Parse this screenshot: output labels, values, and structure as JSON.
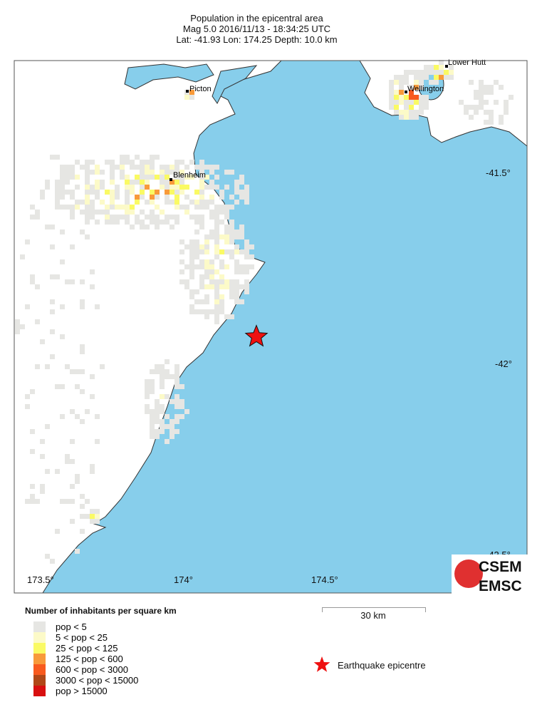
{
  "title": {
    "line1": "Population in the epicentral area",
    "line2": "Mag 5.0  2016/11/13 - 18:34:25 UTC",
    "line3": "Lat: -41.93    Lon: 174.25     Depth:  10.0 km"
  },
  "map": {
    "sea_color": "#87CEEB",
    "land_color": "#ffffff",
    "lon_ticks": [
      "173.5°",
      "174°",
      "174.5°"
    ],
    "lat_ticks": [
      "-41.5°",
      "-42°",
      "-42.5°"
    ],
    "cities": [
      {
        "name": "Picton"
      },
      {
        "name": "Blenheim"
      },
      {
        "name": "Wellington"
      },
      {
        "name": "Lower Hutt"
      }
    ],
    "epicentre": {
      "lat": -41.93,
      "lon": 174.25,
      "color": "#ee1111"
    }
  },
  "logo": {
    "text1": "CSEM",
    "text2": "EMSC"
  },
  "legend": {
    "title": "Number of inhabitants per square km",
    "items": [
      {
        "label": "pop < 5",
        "color": "#e6e6e3"
      },
      {
        "label": "5 < pop < 25",
        "color": "#fcfac8"
      },
      {
        "label": "25 < pop < 125",
        "color": "#fafa64"
      },
      {
        "label": "125 < pop < 600",
        "color": "#f89a3a"
      },
      {
        "label": "600 < pop < 3000",
        "color": "#f85a1e"
      },
      {
        "label": "3000 < pop < 15000",
        "color": "#b04818"
      },
      {
        "label": "pop > 15000",
        "color": "#d81010"
      }
    ]
  },
  "scale": {
    "label": "30 km"
  },
  "epicentre_legend": {
    "label": "Earthquake epicentre"
  }
}
